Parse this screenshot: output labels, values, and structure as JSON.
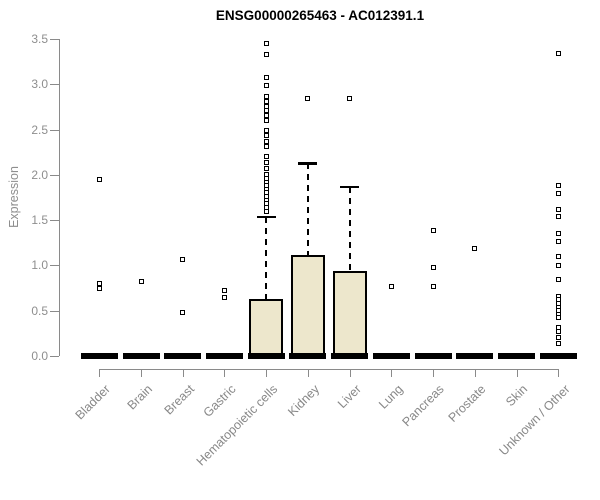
{
  "figure": {
    "background": "#ffffff",
    "title_color": "#000000",
    "axis_color": "#8a8a8a",
    "tick_label_color": "#8e8e8e",
    "category_label_color": "#888888",
    "box_fill_color": "#EDE7CC",
    "box_line_color": "#000000"
  },
  "chart_data": {
    "type": "boxplot",
    "title": "ENSG00000265463 - AC012391.1",
    "xlabel": "",
    "ylabel": "Expression",
    "ylim": [
      0,
      3.5
    ],
    "ytick_labels": [
      "0.0",
      "0.5",
      "1.0",
      "1.5",
      "2.0",
      "2.5",
      "3.0",
      "3.5"
    ],
    "ytick_values": [
      0,
      0.5,
      1,
      1.5,
      2,
      2.5,
      3,
      3.5
    ],
    "grid": false,
    "legend": false,
    "categories": [
      "Bladder",
      "Brain",
      "Breast",
      "Gastric",
      "Hematopoietic cells",
      "Kidney",
      "Liver",
      "Lung",
      "Pancreas",
      "Prostate",
      "Skin",
      "Unknown / Other"
    ],
    "boxes": [
      {
        "category": "Bladder",
        "q1": 0,
        "median": 0,
        "q3": 0,
        "whisker_low": 0,
        "whisker_high": 0,
        "outliers": [
          1.95,
          0.8,
          0.75
        ]
      },
      {
        "category": "Brain",
        "q1": 0,
        "median": 0,
        "q3": 0,
        "whisker_low": 0,
        "whisker_high": 0,
        "outliers": [
          0.82
        ]
      },
      {
        "category": "Breast",
        "q1": 0,
        "median": 0,
        "q3": 0,
        "whisker_low": 0,
        "whisker_high": 0,
        "outliers": [
          1.07,
          0.48
        ]
      },
      {
        "category": "Gastric",
        "q1": 0,
        "median": 0,
        "q3": 0,
        "whisker_low": 0,
        "whisker_high": 0,
        "outliers": [
          0.72,
          0.65
        ]
      },
      {
        "category": "Hematopoietic cells",
        "q1": 0,
        "median": 0,
        "q3": 0.63,
        "whisker_low": 0,
        "whisker_high": 1.54,
        "outliers": [
          3.45,
          3.33,
          3.08,
          2.99,
          2.86,
          2.81,
          2.76,
          2.71,
          2.66,
          2.6,
          2.49,
          2.43,
          2.37,
          2.31,
          2.2,
          2.14,
          2.07,
          2.0,
          1.96,
          1.92,
          1.88,
          1.84,
          1.8,
          1.76,
          1.72,
          1.68,
          1.64,
          1.6
        ]
      },
      {
        "category": "Kidney",
        "q1": 0,
        "median": 0,
        "q3": 1.12,
        "whisker_low": 0,
        "whisker_high": 2.13,
        "outliers": [
          2.84
        ]
      },
      {
        "category": "Liver",
        "q1": 0,
        "median": 0,
        "q3": 0.94,
        "whisker_low": 0,
        "whisker_high": 1.87,
        "outliers": [
          2.84
        ]
      },
      {
        "category": "Lung",
        "q1": 0,
        "median": 0,
        "q3": 0,
        "whisker_low": 0,
        "whisker_high": 0,
        "outliers": [
          0.77
        ]
      },
      {
        "category": "Pancreas",
        "q1": 0,
        "median": 0,
        "q3": 0,
        "whisker_low": 0,
        "whisker_high": 0,
        "outliers": [
          1.39,
          0.98,
          0.77
        ]
      },
      {
        "category": "Prostate",
        "q1": 0,
        "median": 0,
        "q3": 0,
        "whisker_low": 0,
        "whisker_high": 0,
        "outliers": [
          1.19
        ]
      },
      {
        "category": "Skin",
        "q1": 0,
        "median": 0,
        "q3": 0,
        "whisker_low": 0,
        "whisker_high": 0,
        "outliers": []
      },
      {
        "category": "Unknown / Other",
        "q1": 0,
        "median": 0,
        "q3": 0,
        "whisker_low": 0,
        "whisker_high": 0,
        "outliers": [
          3.34,
          1.88,
          1.79,
          1.62,
          1.54,
          1.35,
          1.26,
          1.1,
          1.0,
          0.84,
          0.66,
          0.62,
          0.58,
          0.54,
          0.5,
          0.46,
          0.42,
          0.31,
          0.27,
          0.2,
          0.14
        ]
      }
    ]
  }
}
